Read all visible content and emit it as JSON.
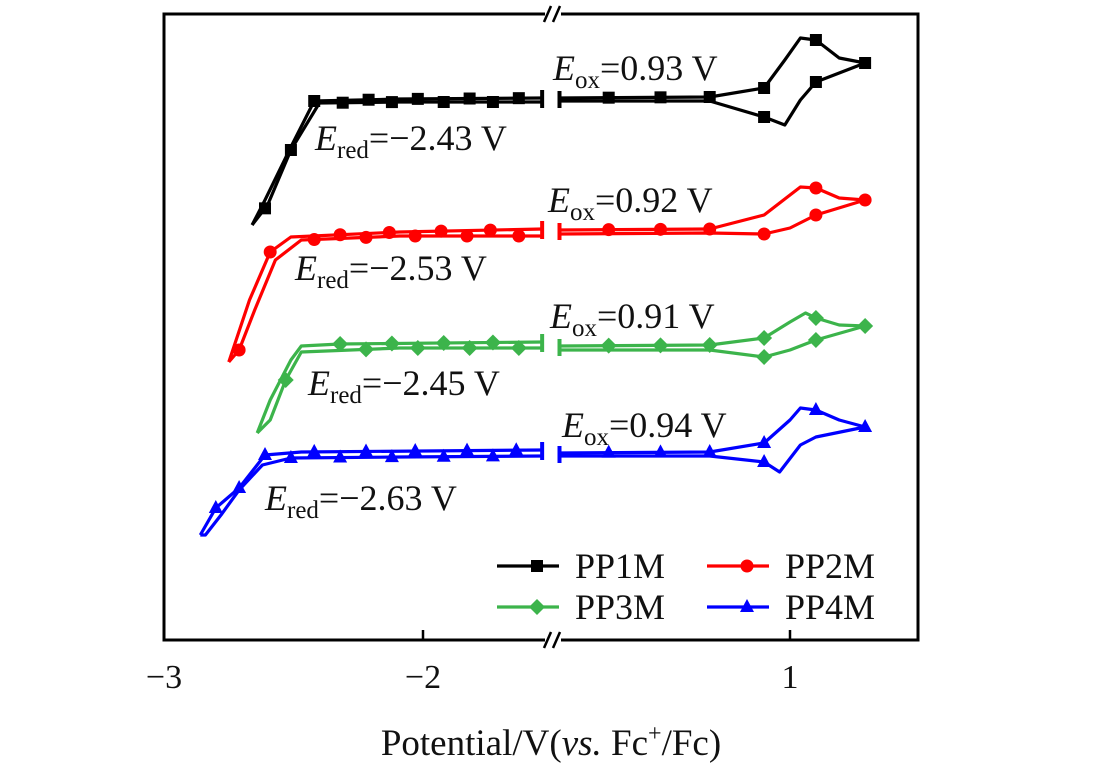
{
  "chart_data": {
    "type": "line",
    "title": "",
    "xlabel": {
      "pre": "Potential/V(",
      "vs": "vs.",
      "mid": " Fc",
      "sup": "+",
      "post": "/Fc)"
    },
    "ylabel": "",
    "x_segments": [
      [
        -3.0,
        -1.5
      ],
      [
        0.11,
        1.49
      ]
    ],
    "ylim": [
      0,
      62.6
    ],
    "xticks": [
      {
        "value": -3,
        "label": "−3"
      },
      {
        "value": -2,
        "label": "−2"
      },
      {
        "value": 1,
        "label": "1"
      }
    ],
    "grid": false,
    "legend_placement": "bottom-right",
    "series": [
      {
        "name": "PP1M",
        "color": "#000000",
        "marker": "square",
        "E_ox": "=0.93 V",
        "E_red": "=−2.43 V",
        "left_fwd": [
          [
            -2.66,
            41.5
          ],
          [
            -2.61,
            44.0
          ],
          [
            -2.51,
            49.3
          ],
          [
            -2.42,
            53.9
          ],
          [
            -2.09,
            54.1
          ],
          [
            -1.54,
            54.2
          ]
        ],
        "left_rev": [
          [
            -1.54,
            53.8
          ],
          [
            -2.09,
            53.8
          ],
          [
            -2.4,
            53.7
          ],
          [
            -2.51,
            49.0
          ],
          [
            -2.6,
            43.5
          ],
          [
            -2.66,
            41.5
          ]
        ],
        "right_fwd": [
          [
            0.11,
            54.2
          ],
          [
            0.69,
            54.3
          ],
          [
            0.9,
            55.2
          ],
          [
            0.98,
            58.0
          ],
          [
            1.04,
            60.2
          ],
          [
            1.1,
            60.0
          ],
          [
            1.19,
            58.2
          ],
          [
            1.29,
            57.7
          ]
        ],
        "right_rev": [
          [
            1.29,
            57.7
          ],
          [
            1.1,
            55.8
          ],
          [
            1.04,
            54.0
          ],
          [
            0.98,
            51.5
          ],
          [
            0.9,
            52.3
          ],
          [
            0.69,
            53.9
          ],
          [
            0.11,
            53.9
          ]
        ],
        "markers_fwd": [
          -2.42,
          -2.21,
          -2.02,
          -1.82,
          -1.63,
          0.3,
          0.5,
          0.69,
          0.9,
          1.1,
          1.29
        ],
        "markers_rev": [
          -2.61,
          -2.51,
          -2.31,
          -2.12,
          -1.92,
          -1.73,
          0.9,
          1.1
        ]
      },
      {
        "name": "PP2M",
        "color": "#ff0000",
        "marker": "circle",
        "E_ox": "=0.92 V",
        "E_red": "=−2.53 V",
        "left_fwd": [
          [
            -2.75,
            27.8
          ],
          [
            -2.67,
            34.0
          ],
          [
            -2.59,
            38.8
          ],
          [
            -2.51,
            40.3
          ],
          [
            -2.09,
            40.8
          ],
          [
            -1.54,
            41.1
          ]
        ],
        "left_rev": [
          [
            -1.54,
            40.4
          ],
          [
            -2.09,
            40.4
          ],
          [
            -2.47,
            40.0
          ],
          [
            -2.57,
            38.0
          ],
          [
            -2.65,
            33.0
          ],
          [
            -2.71,
            29.0
          ],
          [
            -2.75,
            27.8
          ]
        ],
        "right_fwd": [
          [
            0.11,
            41.0
          ],
          [
            0.69,
            41.1
          ],
          [
            0.9,
            42.5
          ],
          [
            1.0,
            44.5
          ],
          [
            1.04,
            45.3
          ],
          [
            1.1,
            45.2
          ],
          [
            1.19,
            44.2
          ],
          [
            1.29,
            44.0
          ]
        ],
        "right_rev": [
          [
            1.29,
            44.0
          ],
          [
            1.1,
            42.5
          ],
          [
            1.0,
            41.2
          ],
          [
            0.9,
            40.6
          ],
          [
            0.69,
            40.7
          ],
          [
            0.11,
            40.6
          ]
        ],
        "markers_fwd": [
          -2.59,
          -2.32,
          -2.13,
          -1.93,
          -1.74,
          0.3,
          0.5,
          0.69,
          1.1,
          1.29
        ],
        "markers_rev": [
          -2.71,
          -2.42,
          -2.22,
          -2.03,
          -1.83,
          -1.63,
          0.9,
          1.1
        ]
      },
      {
        "name": "PP3M",
        "color": "#3cb44b",
        "marker": "diamond",
        "E_ox": "=0.91 V",
        "E_red": "=−2.45 V",
        "left_fwd": [
          [
            -2.64,
            20.7
          ],
          [
            -2.59,
            24.0
          ],
          [
            -2.51,
            28.0
          ],
          [
            -2.47,
            29.4
          ],
          [
            -2.32,
            29.6
          ],
          [
            -1.54,
            29.8
          ]
        ],
        "left_rev": [
          [
            -1.54,
            29.2
          ],
          [
            -2.09,
            29.2
          ],
          [
            -2.47,
            28.8
          ],
          [
            -2.53,
            26.0
          ],
          [
            -2.59,
            22.0
          ],
          [
            -2.64,
            20.7
          ]
        ],
        "right_fwd": [
          [
            0.11,
            29.4
          ],
          [
            0.69,
            29.5
          ],
          [
            0.9,
            30.2
          ],
          [
            1.0,
            31.8
          ],
          [
            1.06,
            32.7
          ],
          [
            1.1,
            32.2
          ],
          [
            1.19,
            31.5
          ],
          [
            1.29,
            31.4
          ]
        ],
        "right_rev": [
          [
            1.29,
            31.4
          ],
          [
            1.1,
            30.0
          ],
          [
            1.0,
            29.0
          ],
          [
            0.9,
            28.3
          ],
          [
            0.69,
            29.0
          ],
          [
            0.11,
            29.0
          ]
        ],
        "markers_fwd": [
          -2.32,
          -2.12,
          -1.92,
          -1.73,
          0.3,
          0.5,
          0.69,
          0.9,
          1.1,
          1.29
        ],
        "markers_rev": [
          -2.53,
          -2.22,
          -2.02,
          -1.82,
          -1.63,
          0.9,
          1.1
        ]
      },
      {
        "name": "PP4M",
        "color": "#0000ff",
        "marker": "triangle",
        "E_ox": "=0.94 V",
        "E_red": "=−2.63 V",
        "left_fwd": [
          [
            -2.86,
            10.5
          ],
          [
            -2.8,
            13.2
          ],
          [
            -2.71,
            15.2
          ],
          [
            -2.61,
            18.5
          ],
          [
            -2.47,
            18.8
          ],
          [
            -1.54,
            19.0
          ]
        ],
        "left_rev": [
          [
            -1.54,
            18.4
          ],
          [
            -2.09,
            18.3
          ],
          [
            -2.51,
            18.2
          ],
          [
            -2.62,
            17.5
          ],
          [
            -2.71,
            15.0
          ],
          [
            -2.78,
            12.5
          ],
          [
            -2.84,
            10.5
          ],
          [
            -2.86,
            10.5
          ]
        ],
        "right_fwd": [
          [
            0.11,
            18.7
          ],
          [
            0.69,
            18.8
          ],
          [
            0.9,
            19.7
          ],
          [
            1.0,
            22.0
          ],
          [
            1.04,
            23.2
          ],
          [
            1.1,
            23.0
          ],
          [
            1.19,
            22.0
          ],
          [
            1.29,
            21.3
          ]
        ],
        "right_rev": [
          [
            1.29,
            21.3
          ],
          [
            1.1,
            20.3
          ],
          [
            1.04,
            19.5
          ],
          [
            0.96,
            16.8
          ],
          [
            0.9,
            17.8
          ],
          [
            0.69,
            18.4
          ],
          [
            0.11,
            18.4
          ]
        ],
        "markers_fwd": [
          -2.8,
          -2.71,
          -2.61,
          -2.42,
          -2.22,
          -2.03,
          -1.83,
          -1.64,
          0.3,
          0.5,
          0.69,
          0.9,
          1.1,
          1.29
        ],
        "markers_rev": [
          -2.51,
          -2.32,
          -2.12,
          -1.92,
          -1.73,
          0.9
        ]
      }
    ],
    "annotations_symbol": "E",
    "annotations_sub_ox": "ox",
    "annotations_sub_red": "red"
  }
}
